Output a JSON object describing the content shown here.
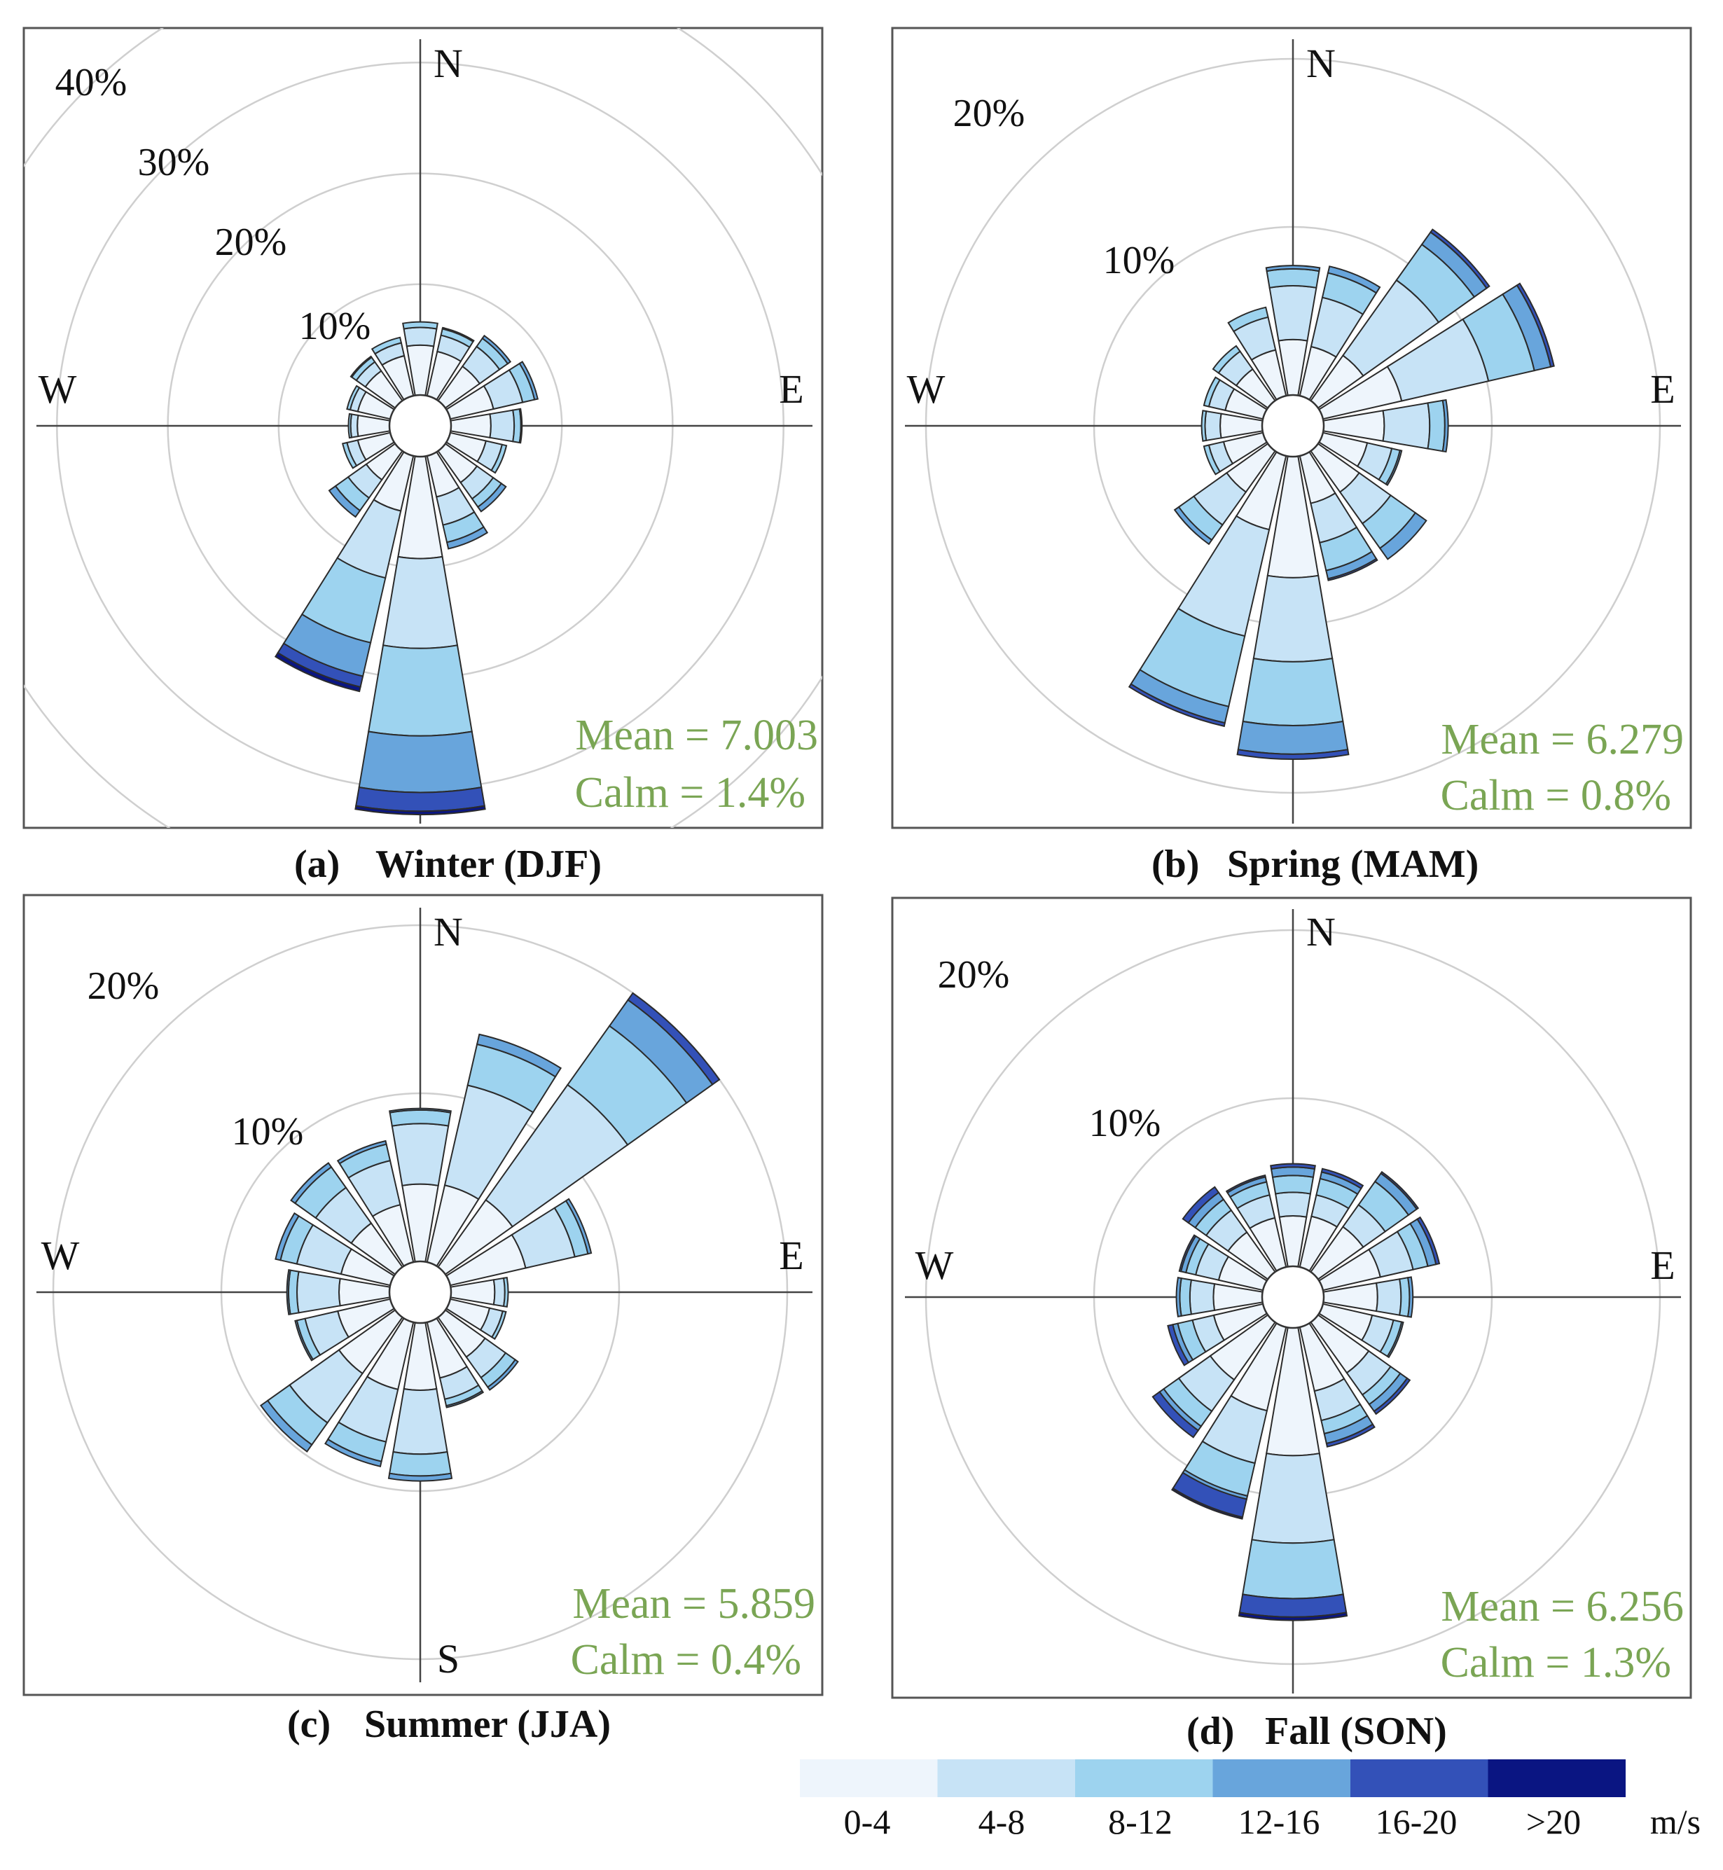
{
  "figure": {
    "title": ""
  },
  "legend": {
    "unit": "m/s",
    "bins": [
      {
        "label": "0-4",
        "color": "#eef5fc"
      },
      {
        "label": "4-8",
        "color": "#c7e3f6"
      },
      {
        "label": "8-12",
        "color": "#9dd3ef"
      },
      {
        "label": "12-16",
        "color": "#68a5dc"
      },
      {
        "label": "16-20",
        "color": "#3351b8"
      },
      {
        "label": ">20",
        "color": "#0a1582"
      }
    ]
  },
  "chart_data": [
    {
      "type": "windrose",
      "caption": {
        "tag": "(a)",
        "season": "Winter (DJF)"
      },
      "mean_text": "Mean = 7.003",
      "calm_text": "Calm = 1.4%",
      "rlim": [
        0,
        45
      ],
      "ring_values": [
        10,
        20,
        30,
        40
      ],
      "ring_labels": [
        "10%",
        "20%",
        "30%",
        "40%"
      ],
      "compass": [
        "N",
        "E",
        "W"
      ],
      "directions": [
        "N",
        "NNE",
        "NE",
        "ENE",
        "E",
        "ESE",
        "SE",
        "SSE",
        "S",
        "SSW",
        "SW",
        "WSW",
        "W",
        "WNW",
        "NW",
        "NNW"
      ],
      "sectors": [
        [
          4.5,
          1.6,
          0.5,
          0,
          0,
          0
        ],
        [
          4.1,
          1.5,
          0.6,
          0.1,
          0,
          0
        ],
        [
          3.8,
          2.2,
          0.9,
          0.3,
          0,
          0
        ],
        [
          4.0,
          2.7,
          1.1,
          0.3,
          0,
          0
        ],
        [
          3.6,
          2.1,
          0.6,
          0.1,
          0,
          0
        ],
        [
          3.3,
          1.5,
          0.4,
          0,
          0,
          0
        ],
        [
          3.5,
          1.8,
          0.9,
          0.5,
          0,
          0
        ],
        [
          3.8,
          2.6,
          1.6,
          0.6,
          0,
          0
        ],
        [
          9.2,
          8.1,
          7.9,
          5.1,
          1.7,
          0.3
        ],
        [
          5.1,
          6.2,
          6.0,
          3.1,
          1.0,
          0.4
        ],
        [
          3.2,
          2.0,
          1.4,
          0.7,
          0,
          0
        ],
        [
          3.0,
          1.0,
          0.4,
          0,
          0,
          0
        ],
        [
          2.9,
          0.6,
          0.2,
          0,
          0,
          0
        ],
        [
          3.0,
          0.7,
          0.3,
          0,
          0,
          0
        ],
        [
          3.3,
          1.0,
          0.5,
          0.1,
          0,
          0
        ],
        [
          3.7,
          1.2,
          0.5,
          0,
          0,
          0
        ]
      ]
    },
    {
      "type": "windrose",
      "caption": {
        "tag": "(b)",
        "season": "Spring (MAM)"
      },
      "mean_text": "Mean = 6.279",
      "calm_text": "Calm = 0.8%",
      "rlim": [
        0,
        24
      ],
      "ring_values": [
        10,
        20
      ],
      "ring_labels": [
        "10%",
        "20%"
      ],
      "compass": [
        "N",
        "E",
        "W"
      ],
      "directions": [
        "N",
        "NNE",
        "NE",
        "ENE",
        "E",
        "ESE",
        "SE",
        "SSE",
        "S",
        "SSW",
        "SW",
        "WSW",
        "W",
        "WNW",
        "NW",
        "NNW"
      ],
      "sectors": [
        [
          3.3,
          3.2,
          1.0,
          0.2,
          0,
          0
        ],
        [
          3.0,
          3.0,
          1.5,
          0.4,
          0,
          0
        ],
        [
          3.3,
          5.5,
          2.6,
          0.9,
          0.2,
          0
        ],
        [
          4.8,
          5.3,
          2.8,
          1.0,
          0.2,
          0
        ],
        [
          3.6,
          2.7,
          0.9,
          0.2,
          0,
          0
        ],
        [
          2.7,
          1.5,
          0.5,
          0.1,
          0,
          0
        ],
        [
          3.0,
          2.3,
          1.8,
          0.8,
          0,
          0
        ],
        [
          2.9,
          2.4,
          1.7,
          0.5,
          0.1,
          0
        ],
        [
          7.2,
          5.0,
          3.8,
          1.7,
          0.3,
          0
        ],
        [
          4.5,
          6.5,
          4.3,
          1.0,
          0.2,
          0
        ],
        [
          3.0,
          2.4,
          1.1,
          0.3,
          0,
          0
        ],
        [
          2.4,
          0.9,
          0.3,
          0,
          0,
          0
        ],
        [
          2.5,
          0.9,
          0.2,
          0,
          0,
          0
        ],
        [
          2.3,
          1.0,
          0.3,
          0,
          0,
          0
        ],
        [
          2.3,
          1.3,
          0.4,
          0,
          0,
          0
        ],
        [
          2.8,
          2.0,
          0.6,
          0,
          0,
          0
        ]
      ]
    },
    {
      "type": "windrose",
      "caption": {
        "tag": "(c)",
        "season": "Summer (JJA)"
      },
      "mean_text": "Mean = 5.859",
      "calm_text": "Calm = 0.4%",
      "rlim": [
        0,
        24
      ],
      "ring_values": [
        10,
        20
      ],
      "ring_labels": [
        "10%",
        "20%"
      ],
      "compass": [
        "N",
        "E",
        "W",
        "S"
      ],
      "directions": [
        "N",
        "NNE",
        "NE",
        "ENE",
        "E",
        "ESE",
        "SE",
        "SSE",
        "S",
        "SSW",
        "SW",
        "WSW",
        "W",
        "WNW",
        "NW",
        "NNW"
      ],
      "sectors": [
        [
          4.6,
          3.6,
          0.8,
          0.1,
          0,
          0
        ],
        [
          4.7,
          6.1,
          2.5,
          0.6,
          0,
          0
        ],
        [
          4.9,
          8.4,
          4.3,
          1.9,
          0.5,
          0
        ],
        [
          4.6,
          3.0,
          0.8,
          0.2,
          0,
          0
        ],
        [
          2.6,
          0.6,
          0.2,
          0,
          0,
          0
        ],
        [
          2.4,
          0.8,
          0.2,
          0,
          0,
          0
        ],
        [
          2.9,
          1.5,
          0.7,
          0.2,
          0,
          0
        ],
        [
          3.4,
          1.3,
          0.4,
          0.1,
          0,
          0
        ],
        [
          4.0,
          3.8,
          1.3,
          0.3,
          0,
          0
        ],
        [
          4.1,
          3.2,
          1.2,
          0.3,
          0,
          0
        ],
        [
          4.1,
          3.6,
          1.6,
          0.5,
          0,
          0
        ],
        [
          3.2,
          2.0,
          0.5,
          0.1,
          0,
          0
        ],
        [
          3.0,
          2.5,
          0.5,
          0.1,
          0,
          0
        ],
        [
          3.0,
          2.7,
          1.0,
          0.3,
          0,
          0
        ],
        [
          3.2,
          2.6,
          1.5,
          0.3,
          0,
          0
        ],
        [
          3.5,
          2.7,
          1.0,
          0.2,
          0,
          0
        ]
      ]
    },
    {
      "type": "windrose",
      "caption": {
        "tag": "(d)",
        "season": "Fall (SON)"
      },
      "mean_text": "Mean = 6.256",
      "calm_text": "Calm = 1.3%",
      "rlim": [
        0,
        24
      ],
      "ring_values": [
        10,
        20
      ],
      "ring_labels": [
        "10%",
        "20%"
      ],
      "compass": [
        "N",
        "E",
        "W"
      ],
      "directions": [
        "N",
        "NNE",
        "NE",
        "ENE",
        "E",
        "ESE",
        "SE",
        "SSE",
        "S",
        "SSW",
        "SW",
        "WSW",
        "W",
        "WNW",
        "NW",
        "NNW"
      ],
      "sectors": [
        [
          3.0,
          1.4,
          1.0,
          0.5,
          0.2,
          0
        ],
        [
          3.1,
          1.3,
          1.0,
          0.4,
          0.2,
          0
        ],
        [
          3.3,
          1.6,
          1.7,
          0.6,
          0.1,
          0
        ],
        [
          3.5,
          2.0,
          0.9,
          0.5,
          0.2,
          0
        ],
        [
          3.2,
          1.4,
          0.5,
          0.2,
          0,
          0
        ],
        [
          3.0,
          1.3,
          0.5,
          0.1,
          0,
          0
        ],
        [
          3.7,
          1.6,
          0.7,
          0.5,
          0.2,
          0
        ],
        [
          3.9,
          1.8,
          0.8,
          0.6,
          0.2,
          0
        ],
        [
          7.6,
          5.2,
          3.3,
          0,
          1.1,
          0.2
        ],
        [
          5.1,
          3.2,
          2.0,
          0.2,
          1.1,
          0.1
        ],
        [
          4.2,
          2.3,
          1.1,
          0.3,
          0.5,
          0
        ],
        [
          3.0,
          1.3,
          0.9,
          0.3,
          0.3,
          0
        ],
        [
          2.9,
          1.4,
          0.6,
          0.2,
          0,
          0
        ],
        [
          2.7,
          1.4,
          0.6,
          0.3,
          0.1,
          0
        ],
        [
          2.9,
          1.6,
          0.8,
          0.5,
          0.4,
          0
        ],
        [
          3.0,
          1.4,
          0.8,
          0.3,
          0.1,
          0
        ]
      ]
    }
  ]
}
